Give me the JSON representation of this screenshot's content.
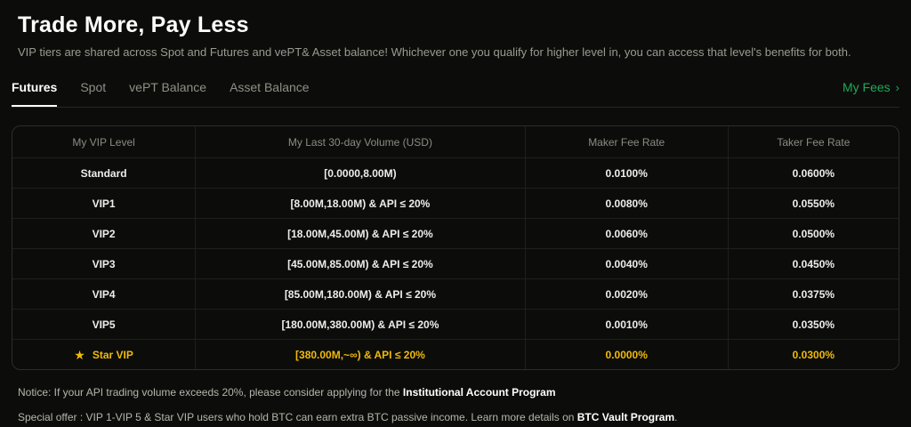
{
  "header": {
    "title": "Trade More, Pay Less",
    "subtitle": "VIP tiers are shared across Spot and Futures and vePT& Asset balance! Whichever one you qualify for higher level in, you can access that level's benefits for both."
  },
  "tabs": [
    {
      "label": "Futures",
      "active": true
    },
    {
      "label": "Spot",
      "active": false
    },
    {
      "label": "vePT Balance",
      "active": false
    },
    {
      "label": "Asset Balance",
      "active": false
    }
  ],
  "my_fees": {
    "label": "My Fees",
    "chevron": "›"
  },
  "table": {
    "columns": [
      "My VIP Level",
      "My Last 30-day Volume (USD)",
      "Maker Fee Rate",
      "Taker Fee Rate"
    ],
    "star_icon": "★",
    "rows": [
      {
        "level": "Standard",
        "volume": "[0.0000,8.00M)",
        "maker": "0.0100%",
        "taker": "0.0600%",
        "highlight": false
      },
      {
        "level": "VIP1",
        "volume": "[8.00M,18.00M) & API ≤ 20%",
        "maker": "0.0080%",
        "taker": "0.0550%",
        "highlight": false
      },
      {
        "level": "VIP2",
        "volume": "[18.00M,45.00M) & API ≤ 20%",
        "maker": "0.0060%",
        "taker": "0.0500%",
        "highlight": false
      },
      {
        "level": "VIP3",
        "volume": "[45.00M,85.00M) & API ≤ 20%",
        "maker": "0.0040%",
        "taker": "0.0450%",
        "highlight": false
      },
      {
        "level": "VIP4",
        "volume": "[85.00M,180.00M) & API ≤ 20%",
        "maker": "0.0020%",
        "taker": "0.0375%",
        "highlight": false
      },
      {
        "level": "VIP5",
        "volume": "[180.00M,380.00M) & API ≤ 20%",
        "maker": "0.0010%",
        "taker": "0.0350%",
        "highlight": false
      },
      {
        "level": "Star VIP",
        "volume": "[380.00M,~∞) & API ≤ 20%",
        "maker": "0.0000%",
        "taker": "0.0300%",
        "highlight": true
      }
    ]
  },
  "notices": [
    {
      "prefix": "Notice: If your API trading volume exceeds 20%, please consider applying for the ",
      "link": "Institutional Account Program",
      "suffix": ""
    },
    {
      "prefix": "Special offer : VIP 1-VIP 5  & Star VIP users who hold BTC can earn extra BTC passive income. Learn more details on ",
      "link": "BTC Vault Program",
      "suffix": "."
    }
  ],
  "colors": {
    "accent_green": "#1ea85c",
    "gold": "#f0b90b",
    "background": "#0c0d0a"
  }
}
